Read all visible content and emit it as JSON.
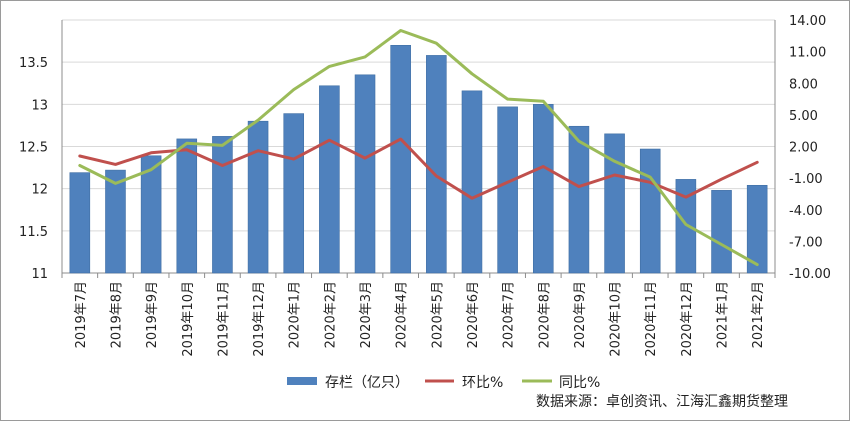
{
  "chart_data": {
    "type": "bar+line",
    "categories": [
      "2019年7月",
      "2019年8月",
      "2019年9月",
      "2019年10月",
      "2019年11月",
      "2019年12月",
      "2020年1月",
      "2020年2月",
      "2020年3月",
      "2020年4月",
      "2020年5月",
      "2020年6月",
      "2020年7月",
      "2020年8月",
      "2020年9月",
      "2020年10月",
      "2020年11月",
      "2020年12月",
      "2021年1月",
      "2021年2月"
    ],
    "left_axis": {
      "ylim": [
        11,
        14
      ],
      "ticks": [
        "11",
        "11.5",
        "12",
        "12.5",
        "13",
        "13.5"
      ]
    },
    "right_axis": {
      "ylim": [
        -10,
        14
      ],
      "ticks": [
        "-10.00",
        "-7.00",
        "-4.00",
        "-1.00",
        "2.00",
        "5.00",
        "8.00",
        "11.00",
        "14.00"
      ]
    },
    "series": [
      {
        "name": "存栏（亿只）",
        "type": "bar",
        "axis": "left",
        "color": "#4f81bd",
        "values": [
          12.19,
          12.22,
          12.39,
          12.59,
          12.62,
          12.8,
          12.89,
          13.22,
          13.35,
          13.7,
          13.58,
          13.16,
          12.97,
          13.0,
          12.74,
          12.65,
          12.47,
          12.11,
          11.98,
          12.04
        ]
      },
      {
        "name": "环比%",
        "type": "line",
        "axis": "right",
        "color": "#c0504d",
        "values": [
          1.1,
          0.3,
          1.4,
          1.7,
          0.2,
          1.6,
          0.8,
          2.6,
          0.9,
          2.7,
          -0.8,
          -2.9,
          -1.4,
          0.1,
          -1.8,
          -0.7,
          -1.4,
          -2.8,
          -1.1,
          0.5
        ]
      },
      {
        "name": "同比%",
        "type": "line",
        "axis": "right",
        "color": "#9bbb59",
        "values": [
          0.2,
          -1.5,
          -0.2,
          2.3,
          2.1,
          4.5,
          7.4,
          9.6,
          10.5,
          13.0,
          11.8,
          8.9,
          6.5,
          6.3,
          2.5,
          0.6,
          -0.9,
          -5.4,
          -7.3,
          -9.2
        ]
      }
    ]
  },
  "source_note": "数据来源：卓创资讯、江海汇鑫期货整理"
}
